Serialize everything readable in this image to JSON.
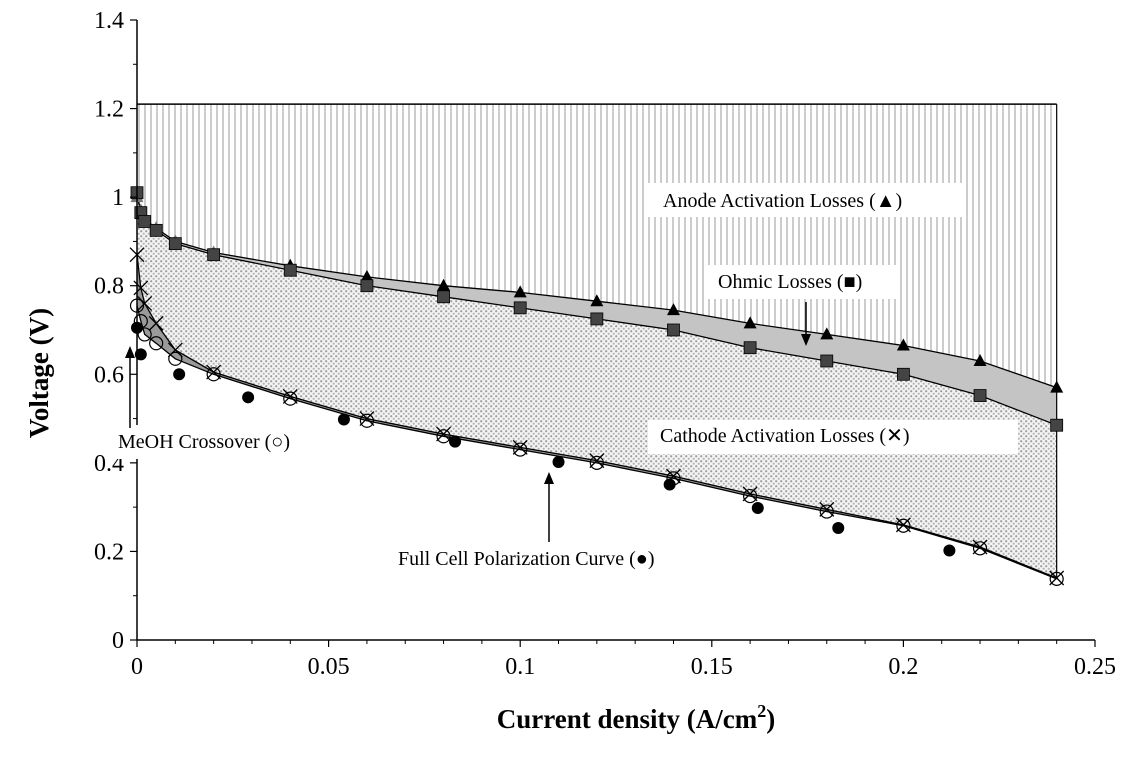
{
  "chart_data": {
    "type": "area",
    "xlabel": "Current density",
    "xlabel_unit_prefix": "(A/cm",
    "xlabel_unit_sup": "2",
    "xlabel_unit_suffix": ")",
    "ylabel": "Voltage (V)",
    "xlim": [
      0,
      0.25
    ],
    "ylim": [
      0,
      1.4
    ],
    "x_ticks": [
      "0",
      "0.05",
      "0.1",
      "0.15",
      "0.2",
      "0.25"
    ],
    "y_ticks": [
      "0",
      "0.2",
      "0.4",
      "0.6",
      "0.8",
      "1",
      "1.2",
      "1.4"
    ],
    "reversible_voltage": 1.21,
    "grid": false,
    "annotations": {
      "anode": "Anode Activation Losses (▲)",
      "ohmic": "Ohmic Losses (■)",
      "cathode": "Cathode Activation Losses (✕)",
      "meoh": "MeOH Crossover (○)",
      "full": "Full Cell Polarization Curve (●)"
    },
    "series": [
      {
        "name": "Anode Activation Losses",
        "marker": "triangle",
        "x": [
          0,
          0.001,
          0.002,
          0.005,
          0.01,
          0.02,
          0.04,
          0.06,
          0.08,
          0.1,
          0.12,
          0.14,
          0.16,
          0.18,
          0.2,
          0.22,
          0.24
        ],
        "y": [
          1.0,
          0.97,
          0.95,
          0.93,
          0.9,
          0.875,
          0.845,
          0.82,
          0.8,
          0.785,
          0.765,
          0.745,
          0.715,
          0.69,
          0.665,
          0.63,
          0.57
        ]
      },
      {
        "name": "Ohmic Losses",
        "marker": "square",
        "x": [
          0,
          0.001,
          0.002,
          0.005,
          0.01,
          0.02,
          0.04,
          0.06,
          0.08,
          0.1,
          0.12,
          0.14,
          0.16,
          0.18,
          0.2,
          0.22,
          0.24
        ],
        "y": [
          1.01,
          0.965,
          0.945,
          0.925,
          0.895,
          0.87,
          0.835,
          0.8,
          0.775,
          0.75,
          0.725,
          0.7,
          0.66,
          0.63,
          0.6,
          0.552,
          0.485
        ]
      },
      {
        "name": "Cathode Activation Losses",
        "marker": "cross",
        "x": [
          0,
          0.001,
          0.002,
          0.005,
          0.01,
          0.02,
          0.04,
          0.06,
          0.08,
          0.1,
          0.12,
          0.14,
          0.16,
          0.18,
          0.2,
          0.22,
          0.24
        ],
        "y": [
          0.87,
          0.795,
          0.76,
          0.715,
          0.655,
          0.605,
          0.55,
          0.5,
          0.465,
          0.435,
          0.405,
          0.37,
          0.33,
          0.295,
          0.26,
          0.21,
          0.14
        ]
      },
      {
        "name": "MeOH Crossover",
        "marker": "circle-open",
        "x": [
          0,
          0.001,
          0.002,
          0.005,
          0.01,
          0.02,
          0.04,
          0.06,
          0.08,
          0.1,
          0.12,
          0.14,
          0.16,
          0.18,
          0.2,
          0.22,
          0.24
        ],
        "y": [
          0.755,
          0.72,
          0.69,
          0.67,
          0.635,
          0.6,
          0.545,
          0.495,
          0.46,
          0.43,
          0.4,
          0.365,
          0.325,
          0.29,
          0.258,
          0.207,
          0.138
        ]
      },
      {
        "name": "Full Cell Polarization Curve",
        "marker": "circle-filled",
        "x": [
          0,
          0.001,
          0.011,
          0.029,
          0.054,
          0.083,
          0.11,
          0.139,
          0.162,
          0.183,
          0.212
        ],
        "y": [
          0.705,
          0.645,
          0.6,
          0.548,
          0.498,
          0.448,
          0.402,
          0.351,
          0.298,
          0.253,
          0.202
        ]
      }
    ]
  }
}
